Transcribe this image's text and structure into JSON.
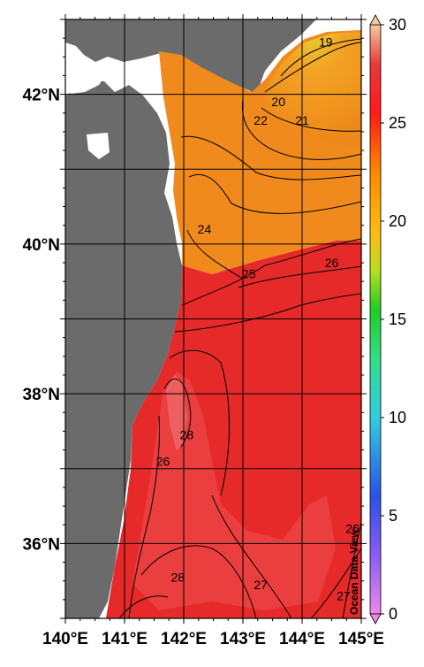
{
  "map": {
    "lat_labels": [
      "42°N",
      "40°N",
      "38°N",
      "36°N"
    ],
    "lat_values": [
      42,
      40,
      38,
      36
    ],
    "lon_labels": [
      "140°E",
      "141°E",
      "142°E",
      "143°E",
      "144°E",
      "145°E"
    ],
    "lon_values": [
      140,
      141,
      142,
      143,
      144,
      145
    ],
    "lon_range": [
      140,
      145
    ],
    "lat_range": [
      35,
      43
    ],
    "land_color": "#6b6b6b",
    "graticule_color": "#000000",
    "contours": [
      {
        "label": "19",
        "lon": 144.4,
        "lat": 42.7
      },
      {
        "label": "20",
        "lon": 143.6,
        "lat": 41.9
      },
      {
        "label": "21",
        "lon": 144.0,
        "lat": 41.65
      },
      {
        "label": "22",
        "lon": 143.3,
        "lat": 41.65
      },
      {
        "label": "24",
        "lon": 142.35,
        "lat": 40.2
      },
      {
        "label": "25",
        "lon": 143.1,
        "lat": 39.6
      },
      {
        "label": "26",
        "lon": 144.5,
        "lat": 39.75
      },
      {
        "label": "28",
        "lon": 142.05,
        "lat": 37.45
      },
      {
        "label": "26",
        "lon": 141.65,
        "lat": 37.1
      },
      {
        "label": "28",
        "lon": 141.9,
        "lat": 35.55
      },
      {
        "label": "27",
        "lon": 143.3,
        "lat": 35.45
      },
      {
        "label": "27",
        "lon": 144.7,
        "lat": 35.3
      },
      {
        "label": "26",
        "lon": 144.85,
        "lat": 36.2
      }
    ]
  },
  "colorbar": {
    "ticks": [
      "0",
      "5",
      "10",
      "15",
      "20",
      "25",
      "30"
    ],
    "tick_values": [
      0,
      5,
      10,
      15,
      20,
      25,
      30
    ],
    "range": [
      0,
      30
    ],
    "stops": [
      {
        "v": 0,
        "c": "#ee88ee"
      },
      {
        "v": 3,
        "c": "#8a5cf0"
      },
      {
        "v": 6,
        "c": "#2a52e6"
      },
      {
        "v": 10,
        "c": "#33cce0"
      },
      {
        "v": 13,
        "c": "#33dd88"
      },
      {
        "v": 15.5,
        "c": "#22cc22"
      },
      {
        "v": 17.5,
        "c": "#bbdd22"
      },
      {
        "v": 19.5,
        "c": "#ffbb11"
      },
      {
        "v": 22.5,
        "c": "#ff8800"
      },
      {
        "v": 25.5,
        "c": "#ff1a1a"
      },
      {
        "v": 28,
        "c": "#e83a3a"
      },
      {
        "v": 30,
        "c": "#f4c8a0"
      }
    ]
  },
  "watermark": "Ocean Data View"
}
